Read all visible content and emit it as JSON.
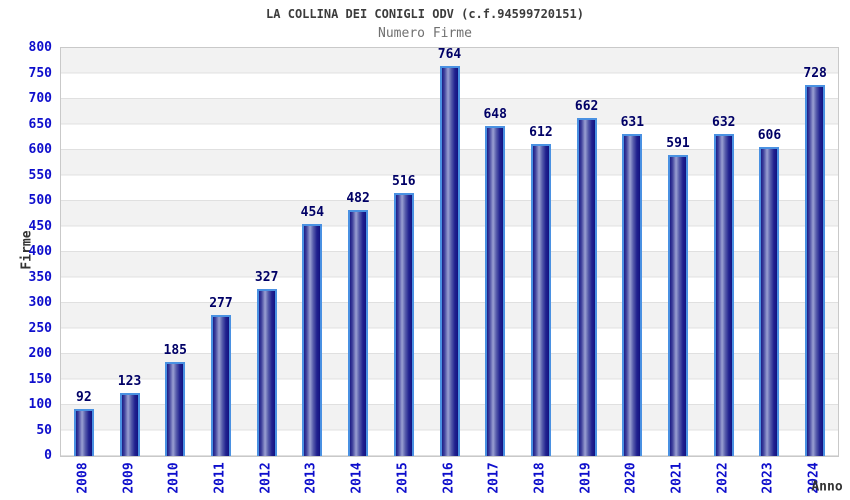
{
  "header": {
    "title": "LA COLLINA DEI CONIGLI ODV (c.f.94599720151)",
    "subtitle": "Numero Firme"
  },
  "chart_data": {
    "type": "bar",
    "title": "LA COLLINA DEI CONIGLI ODV (c.f.94599720151)",
    "subtitle": "Numero Firme",
    "xlabel": "Anno",
    "ylabel": "Firme",
    "categories": [
      "2008",
      "2009",
      "2010",
      "2011",
      "2012",
      "2013",
      "2014",
      "2015",
      "2016",
      "2017",
      "2018",
      "2019",
      "2020",
      "2021",
      "2022",
      "2023",
      "2024"
    ],
    "values": [
      92,
      123,
      185,
      277,
      327,
      454,
      482,
      516,
      764,
      648,
      612,
      662,
      631,
      591,
      632,
      606,
      728
    ],
    "ylim": [
      0,
      800
    ],
    "ytick_step": 50,
    "grid": true,
    "legend_position": "none",
    "bands_alternating": true,
    "colors": {
      "bar_border": "#4a91e2",
      "bar_dark": "#1c1c86",
      "bar_mid": "#9aa0d2",
      "tick_label": "#0e0ecc",
      "value_label": "#000066",
      "title": "#3c3c3c",
      "subtitle": "#707070",
      "axis_text": "#333333",
      "gridline": "#e0e0e0",
      "plot_border": "#c9c9c9",
      "band_gray": "#f2f2f2",
      "band_white": "#ffffff",
      "background": "#ffffff"
    }
  }
}
